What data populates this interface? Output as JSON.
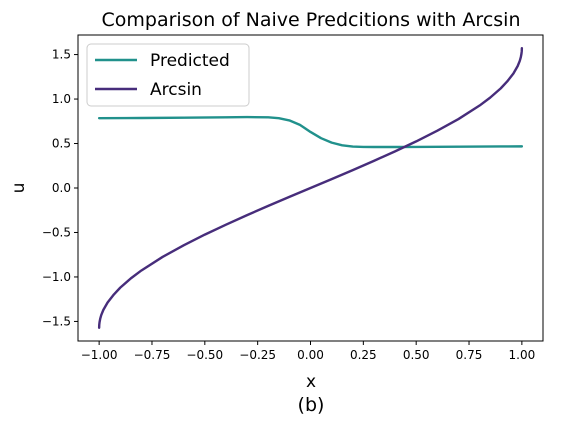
{
  "chart_data": {
    "type": "line",
    "title": "Comparison of Naive Predcitions with Arcsin",
    "xlabel": "x",
    "ylabel": "u",
    "caption": "(b)",
    "xlim": [
      -1.1,
      1.1
    ],
    "ylim": [
      -1.72,
      1.72
    ],
    "xticks": [
      -1.0,
      -0.75,
      -0.5,
      -0.25,
      0.0,
      0.25,
      0.5,
      0.75,
      1.0
    ],
    "xtick_labels": [
      "−1.00",
      "−0.75",
      "−0.50",
      "−0.25",
      "0.00",
      "0.25",
      "0.50",
      "0.75",
      "1.00"
    ],
    "yticks": [
      -1.5,
      -1.0,
      -0.5,
      0.0,
      0.5,
      1.0,
      1.5
    ],
    "ytick_labels": [
      "−1.5",
      "−1.0",
      "−0.5",
      "0.0",
      "0.5",
      "1.0",
      "1.5"
    ],
    "grid": false,
    "legend_position": "top-left",
    "series": [
      {
        "name": "Predicted",
        "color": "#21918c",
        "x": [
          -1.0,
          -0.8,
          -0.6,
          -0.4,
          -0.3,
          -0.2,
          -0.15,
          -0.1,
          -0.05,
          0.0,
          0.05,
          0.1,
          0.15,
          0.2,
          0.25,
          0.3,
          0.4,
          0.5,
          0.6,
          0.7,
          0.8,
          0.9,
          1.0
        ],
        "y": [
          0.785,
          0.787,
          0.79,
          0.795,
          0.797,
          0.795,
          0.785,
          0.76,
          0.71,
          0.63,
          0.56,
          0.51,
          0.48,
          0.466,
          0.462,
          0.461,
          0.461,
          0.462,
          0.463,
          0.465,
          0.466,
          0.467,
          0.468
        ]
      },
      {
        "name": "Arcsin",
        "color": "#472d7b",
        "x": [
          -1.0,
          -0.9995,
          -0.998,
          -0.995,
          -0.99,
          -0.98,
          -0.96,
          -0.93,
          -0.9,
          -0.85,
          -0.8,
          -0.7,
          -0.6,
          -0.5,
          -0.4,
          -0.3,
          -0.2,
          -0.1,
          0.0,
          0.1,
          0.2,
          0.3,
          0.4,
          0.5,
          0.6,
          0.7,
          0.8,
          0.85,
          0.9,
          0.93,
          0.96,
          0.98,
          0.99,
          0.995,
          0.998,
          0.9995,
          1.0
        ],
        "y": [
          -1.571,
          -1.539,
          -1.508,
          -1.471,
          -1.429,
          -1.37,
          -1.287,
          -1.196,
          -1.12,
          -1.016,
          -0.927,
          -0.775,
          -0.644,
          -0.524,
          -0.412,
          -0.305,
          -0.201,
          -0.1,
          0.0,
          0.1,
          0.201,
          0.305,
          0.412,
          0.524,
          0.644,
          0.775,
          0.927,
          1.016,
          1.12,
          1.196,
          1.287,
          1.37,
          1.429,
          1.471,
          1.508,
          1.539,
          1.571
        ]
      }
    ]
  }
}
